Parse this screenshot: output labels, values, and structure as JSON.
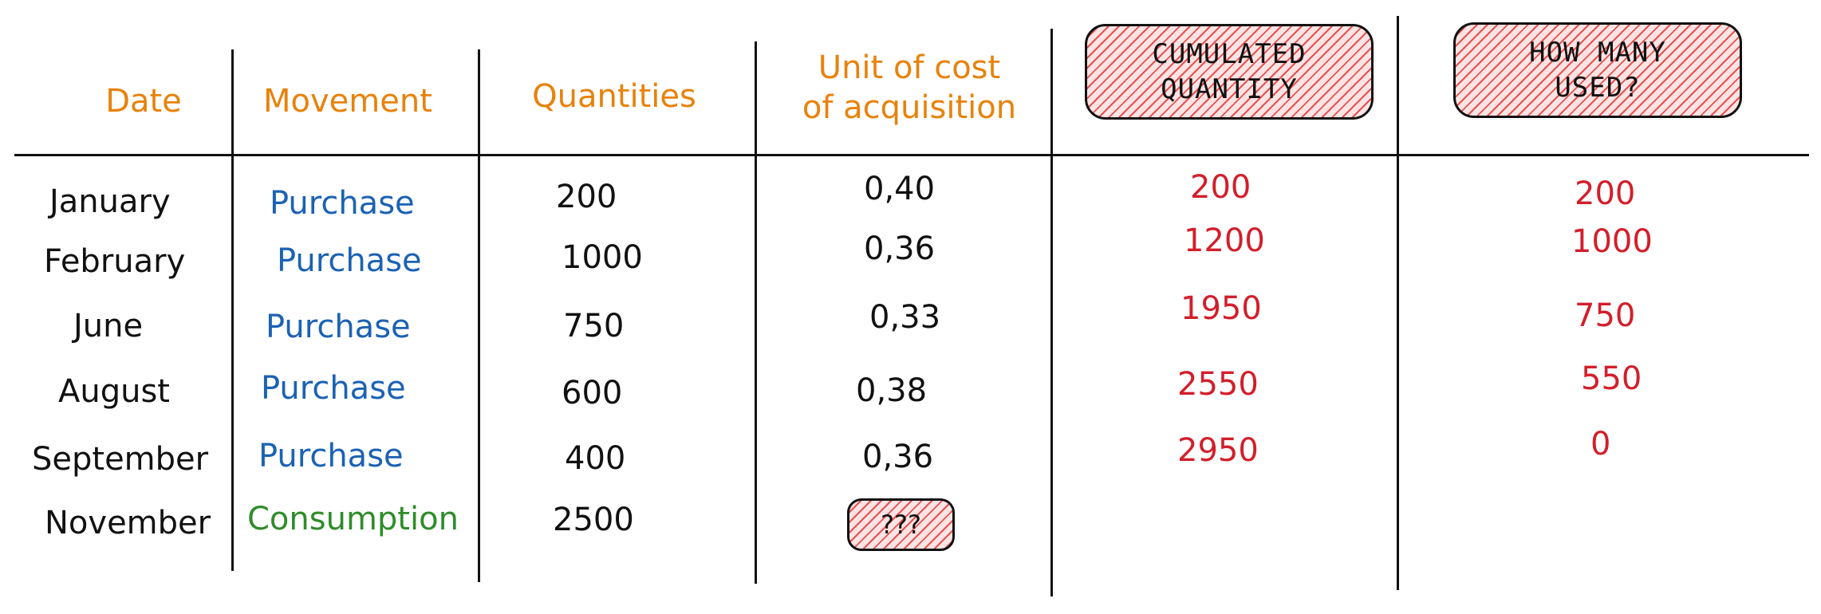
{
  "headers": {
    "date": "Date",
    "movement": "Movement",
    "quantities": "Quantities",
    "unit_cost_line1": "Unit of cost",
    "unit_cost_line2": "of acquisition",
    "cumulated_line1": "CUMULATED",
    "cumulated_line2": "QUANTITY",
    "used_line1": "HOW MANY",
    "used_line2": "USED?"
  },
  "rows": [
    {
      "date": "January",
      "movement": "Purchase",
      "movement_type": "purchase",
      "quantity": "200",
      "unit_cost": "0,40",
      "cumulated": "200",
      "used": "200"
    },
    {
      "date": "February",
      "movement": "Purchase",
      "movement_type": "purchase",
      "quantity": "1000",
      "unit_cost": "0,36",
      "cumulated": "1200",
      "used": "1000"
    },
    {
      "date": "June",
      "movement": "Purchase",
      "movement_type": "purchase",
      "quantity": "750",
      "unit_cost": "0,33",
      "cumulated": "1950",
      "used": "750"
    },
    {
      "date": "August",
      "movement": "Purchase",
      "movement_type": "purchase",
      "quantity": "600",
      "unit_cost": "0,38",
      "cumulated": "2550",
      "used": "550"
    },
    {
      "date": "September",
      "movement": "Purchase",
      "movement_type": "purchase",
      "quantity": "400",
      "unit_cost": "0,36",
      "cumulated": "2950",
      "used": "0"
    },
    {
      "date": "November",
      "movement": "Consumption",
      "movement_type": "consumption",
      "quantity": "2500",
      "unit_cost": "???",
      "cumulated": "",
      "used": ""
    }
  ],
  "colors": {
    "header": "#e8820c",
    "purchase": "#1b62b4",
    "consumption": "#2f8c2a",
    "computed": "#d21f2b",
    "hatch": "#e23737"
  }
}
